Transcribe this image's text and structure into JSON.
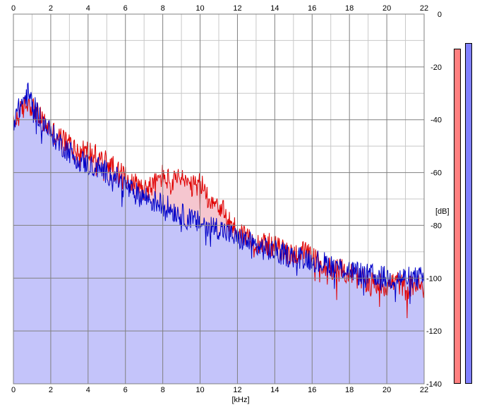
{
  "chart_data": {
    "type": "area",
    "xlabel": "[kHz]",
    "ylabel": "[dB]",
    "xlim": [
      0,
      22
    ],
    "ylim": [
      -140,
      0
    ],
    "x_ticks": [
      0,
      2,
      4,
      6,
      8,
      10,
      12,
      14,
      16,
      18,
      20,
      22
    ],
    "y_ticks": [
      0,
      -20,
      -40,
      -60,
      -80,
      -100,
      -120,
      -140
    ],
    "x_tick_labels": [
      "0",
      "2",
      "4",
      "6",
      "8",
      "10",
      "12",
      "14",
      "16",
      "18",
      "20",
      "22"
    ],
    "y_tick_labels": [
      "0",
      "-20",
      "-40",
      "-60",
      "-80",
      "-100",
      "-120",
      "-140"
    ],
    "grid": true,
    "colors": {
      "left_line": "#e00000",
      "left_fill": "#f5c6cf",
      "right_line": "#0000c8",
      "right_fill": "#c4c4fa",
      "left_meter": "#ff8080",
      "right_meter": "#8080ff",
      "grid_major": "#808080",
      "grid_minor": "#c8c8c8"
    },
    "series": [
      {
        "channel": "left",
        "x": [
          0,
          0.3,
          0.5,
          0.8,
          1.0,
          1.5,
          2.0,
          2.5,
          3.0,
          3.5,
          4.0,
          4.5,
          5.0,
          5.5,
          6.0,
          6.5,
          7.0,
          7.5,
          8.0,
          8.5,
          9.0,
          9.5,
          10.0,
          10.5,
          11.0,
          11.5,
          12.0,
          12.5,
          13.0,
          13.5,
          14.0,
          14.5,
          15.0,
          15.5,
          16.0,
          16.5,
          17.0,
          17.5,
          18.0,
          18.5,
          19.0,
          19.5,
          20.0,
          20.5,
          21.0,
          21.5,
          22.0
        ],
        "y": [
          -42,
          -38,
          -36,
          -33,
          -35,
          -40,
          -44,
          -47,
          -49,
          -52,
          -52,
          -54,
          -56,
          -59,
          -62,
          -64,
          -66,
          -65,
          -61,
          -64,
          -62,
          -66,
          -64,
          -70,
          -72,
          -78,
          -82,
          -84,
          -86,
          -87,
          -88,
          -90,
          -91,
          -90,
          -92,
          -95,
          -96,
          -97,
          -98,
          -100,
          -102,
          -102,
          -103,
          -101,
          -104,
          -102,
          -104
        ]
      },
      {
        "channel": "right",
        "x": [
          0,
          0.3,
          0.5,
          0.8,
          1.0,
          1.5,
          2.0,
          2.5,
          3.0,
          3.5,
          4.0,
          4.5,
          5.0,
          5.5,
          6.0,
          6.5,
          7.0,
          7.5,
          8.0,
          8.5,
          9.0,
          9.5,
          10.0,
          10.5,
          11.0,
          11.5,
          12.0,
          12.5,
          13.0,
          13.5,
          14.0,
          14.5,
          15.0,
          15.5,
          16.0,
          16.5,
          17.0,
          17.5,
          18.0,
          18.5,
          19.0,
          19.5,
          20.0,
          20.5,
          21.0,
          21.5,
          22.0
        ],
        "y": [
          -40,
          -36,
          -33,
          -30,
          -34,
          -40,
          -45,
          -49,
          -52,
          -55,
          -57,
          -58,
          -60,
          -62,
          -65,
          -68,
          -69,
          -71,
          -72,
          -74,
          -76,
          -78,
          -79,
          -80,
          -81,
          -83,
          -85,
          -86,
          -88,
          -89,
          -90,
          -91,
          -92,
          -92,
          -93,
          -94,
          -95,
          -96,
          -97,
          -98,
          -99,
          -99,
          -100,
          -100,
          -100,
          -100,
          -100
        ]
      }
    ],
    "meters": [
      {
        "channel": "left",
        "level_db": -13
      },
      {
        "channel": "right",
        "level_db": -11
      }
    ]
  }
}
